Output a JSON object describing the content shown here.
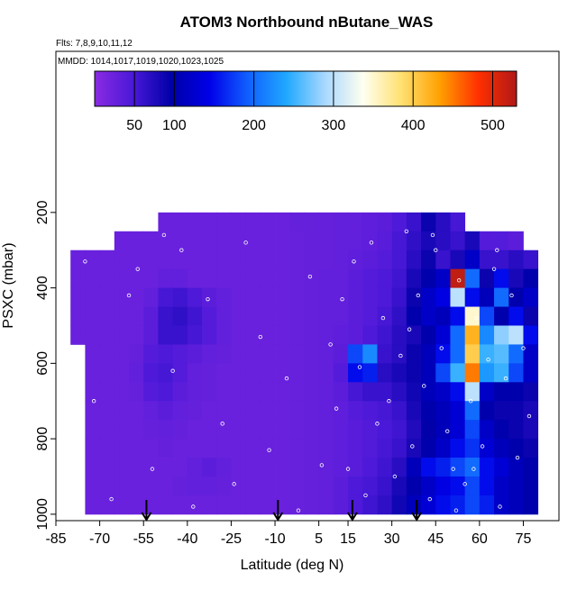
{
  "chart_data": {
    "type": "heatmap",
    "title": "ATOM3 Northbound nButane_WAS",
    "subtitle": "Flts: 7,8,9,10,11,12",
    "annotation": "MMDD: 1014,1017,1019,1020,1023,1025",
    "xlabel": "Latitude (deg N)",
    "ylabel": "PSXC (mbar)",
    "xlim": [
      -85,
      87.2
    ],
    "xticks": [
      -85,
      -70,
      -55,
      -40,
      -25,
      -10,
      5,
      15,
      30,
      45,
      60,
      75
    ],
    "ylim": [
      -227,
      1017
    ],
    "yticks": [
      200,
      400,
      600,
      800,
      1000
    ],
    "zlim": [
      0,
      530
    ],
    "colorbar_ticks": [
      50,
      100,
      200,
      300,
      400,
      500
    ],
    "colors": [
      "#8a2be2",
      "#4a18d8",
      "#0000a8",
      "#0000e8",
      "#1060ff",
      "#20a8ff",
      "#a8d8ff",
      "#fffff0",
      "#ffe070",
      "#ffa000",
      "#ff3000",
      "#b01818"
    ],
    "x_edges": [
      -80,
      -75,
      -70,
      -65,
      -60,
      -55,
      -50,
      -45,
      -40,
      -35,
      -30,
      -25,
      -20,
      -15,
      -10,
      -5,
      0,
      5,
      10,
      15,
      20,
      25,
      30,
      35,
      40,
      45,
      50,
      55,
      60,
      65,
      70,
      75,
      80
    ],
    "y_edges": [
      200,
      250,
      300,
      350,
      400,
      450,
      500,
      550,
      600,
      650,
      700,
      750,
      800,
      850,
      900,
      950,
      1000
    ],
    "z": [
      [
        null,
        null,
        null,
        null,
        null,
        null,
        25,
        25,
        25,
        25,
        25,
        25,
        25,
        25,
        25,
        28,
        28,
        28,
        30,
        30,
        32,
        35,
        45,
        60,
        90,
        70,
        50,
        null,
        null,
        null,
        null,
        null
      ],
      [
        null,
        null,
        null,
        25,
        25,
        25,
        25,
        25,
        25,
        25,
        25,
        25,
        25,
        25,
        25,
        26,
        28,
        28,
        30,
        30,
        32,
        38,
        50,
        65,
        80,
        70,
        60,
        80,
        40,
        40,
        35,
        null
      ],
      [
        25,
        25,
        25,
        25,
        25,
        25,
        25,
        25,
        25,
        25,
        25,
        25,
        25,
        25,
        25,
        26,
        28,
        28,
        30,
        32,
        35,
        40,
        50,
        70,
        90,
        60,
        80,
        120,
        60,
        60,
        70,
        60
      ],
      [
        25,
        25,
        25,
        25,
        25,
        25,
        30,
        30,
        25,
        25,
        25,
        25,
        25,
        25,
        25,
        26,
        28,
        30,
        30,
        35,
        40,
        45,
        55,
        80,
        100,
        120,
        520,
        200,
        90,
        150,
        80,
        100
      ],
      [
        25,
        25,
        25,
        25,
        25,
        30,
        50,
        55,
        45,
        35,
        30,
        25,
        25,
        25,
        25,
        26,
        28,
        30,
        30,
        35,
        40,
        45,
        60,
        90,
        120,
        140,
        300,
        150,
        110,
        200,
        100,
        120
      ],
      [
        25,
        25,
        25,
        25,
        25,
        35,
        60,
        65,
        55,
        40,
        30,
        25,
        25,
        25,
        25,
        26,
        28,
        30,
        30,
        35,
        40,
        50,
        65,
        100,
        120,
        110,
        150,
        350,
        180,
        100,
        150,
        90
      ],
      [
        25,
        25,
        25,
        25,
        25,
        35,
        60,
        60,
        50,
        40,
        30,
        25,
        25,
        25,
        25,
        26,
        28,
        30,
        32,
        35,
        45,
        55,
        70,
        80,
        100,
        130,
        200,
        420,
        220,
        280,
        300,
        150
      ],
      [
        null,
        25,
        25,
        25,
        28,
        40,
        45,
        40,
        35,
        30,
        28,
        25,
        25,
        25,
        25,
        26,
        28,
        30,
        35,
        180,
        220,
        60,
        70,
        90,
        110,
        150,
        200,
        400,
        250,
        260,
        200,
        120
      ],
      [
        null,
        25,
        25,
        25,
        30,
        45,
        50,
        40,
        30,
        28,
        25,
        25,
        25,
        25,
        25,
        26,
        28,
        30,
        40,
        150,
        160,
        70,
        80,
        90,
        110,
        180,
        250,
        450,
        230,
        250,
        180,
        120
      ],
      [
        null,
        25,
        25,
        25,
        28,
        40,
        45,
        35,
        30,
        28,
        25,
        25,
        25,
        25,
        25,
        26,
        28,
        30,
        35,
        50,
        60,
        60,
        70,
        85,
        110,
        120,
        150,
        300,
        120,
        100,
        100,
        90
      ],
      [
        null,
        25,
        25,
        25,
        25,
        30,
        35,
        30,
        28,
        25,
        25,
        25,
        25,
        25,
        25,
        26,
        28,
        30,
        32,
        40,
        45,
        50,
        60,
        80,
        100,
        110,
        130,
        200,
        100,
        90,
        90,
        80
      ],
      [
        null,
        25,
        25,
        25,
        25,
        28,
        30,
        28,
        25,
        25,
        25,
        25,
        25,
        25,
        25,
        26,
        28,
        30,
        32,
        38,
        42,
        48,
        55,
        75,
        95,
        110,
        130,
        180,
        120,
        100,
        90,
        80
      ],
      [
        null,
        25,
        25,
        25,
        25,
        25,
        28,
        25,
        25,
        25,
        25,
        25,
        25,
        25,
        25,
        26,
        28,
        30,
        32,
        38,
        42,
        50,
        60,
        80,
        100,
        120,
        150,
        170,
        130,
        110,
        100,
        90
      ],
      [
        null,
        25,
        25,
        25,
        25,
        25,
        25,
        25,
        30,
        35,
        30,
        25,
        25,
        25,
        25,
        26,
        28,
        30,
        32,
        38,
        45,
        55,
        70,
        110,
        150,
        160,
        180,
        200,
        150,
        130,
        110,
        100
      ],
      [
        null,
        25,
        25,
        25,
        25,
        25,
        25,
        28,
        30,
        30,
        28,
        25,
        25,
        25,
        25,
        26,
        28,
        30,
        35,
        45,
        50,
        60,
        80,
        100,
        120,
        140,
        150,
        180,
        150,
        120,
        110,
        100
      ],
      [
        null,
        25,
        25,
        25,
        25,
        25,
        25,
        25,
        25,
        25,
        25,
        25,
        25,
        25,
        25,
        26,
        28,
        30,
        35,
        45,
        55,
        65,
        85,
        110,
        130,
        150,
        160,
        180,
        160,
        120,
        110,
        100
      ]
    ],
    "points": {
      "x": [
        -75,
        -72,
        -66,
        -60,
        -57,
        -52,
        -48,
        -45,
        -42,
        -38,
        -33,
        -28,
        -24,
        -20,
        -15,
        -12,
        -6,
        -2,
        2,
        6,
        9,
        11,
        13,
        15,
        17,
        19,
        21,
        23,
        25,
        27,
        29,
        31,
        33,
        35,
        37,
        39,
        41,
        43,
        45,
        47,
        49,
        51,
        53,
        55,
        57,
        59,
        61,
        63,
        65,
        67,
        69,
        71,
        73,
        75,
        77,
        44,
        52,
        58,
        66,
        36
      ],
      "y": [
        330,
        700,
        960,
        420,
        350,
        880,
        260,
        620,
        300,
        980,
        430,
        760,
        920,
        280,
        530,
        830,
        640,
        990,
        370,
        870,
        550,
        720,
        430,
        880,
        330,
        610,
        950,
        280,
        760,
        480,
        700,
        900,
        580,
        250,
        820,
        420,
        660,
        960,
        300,
        560,
        780,
        880,
        380,
        920,
        700,
        480,
        820,
        590,
        350,
        980,
        640,
        420,
        850,
        560,
        740,
        260,
        990,
        880,
        300,
        510
      ]
    },
    "flight_markers": [
      -54,
      -9,
      16.5,
      38.5
    ]
  }
}
